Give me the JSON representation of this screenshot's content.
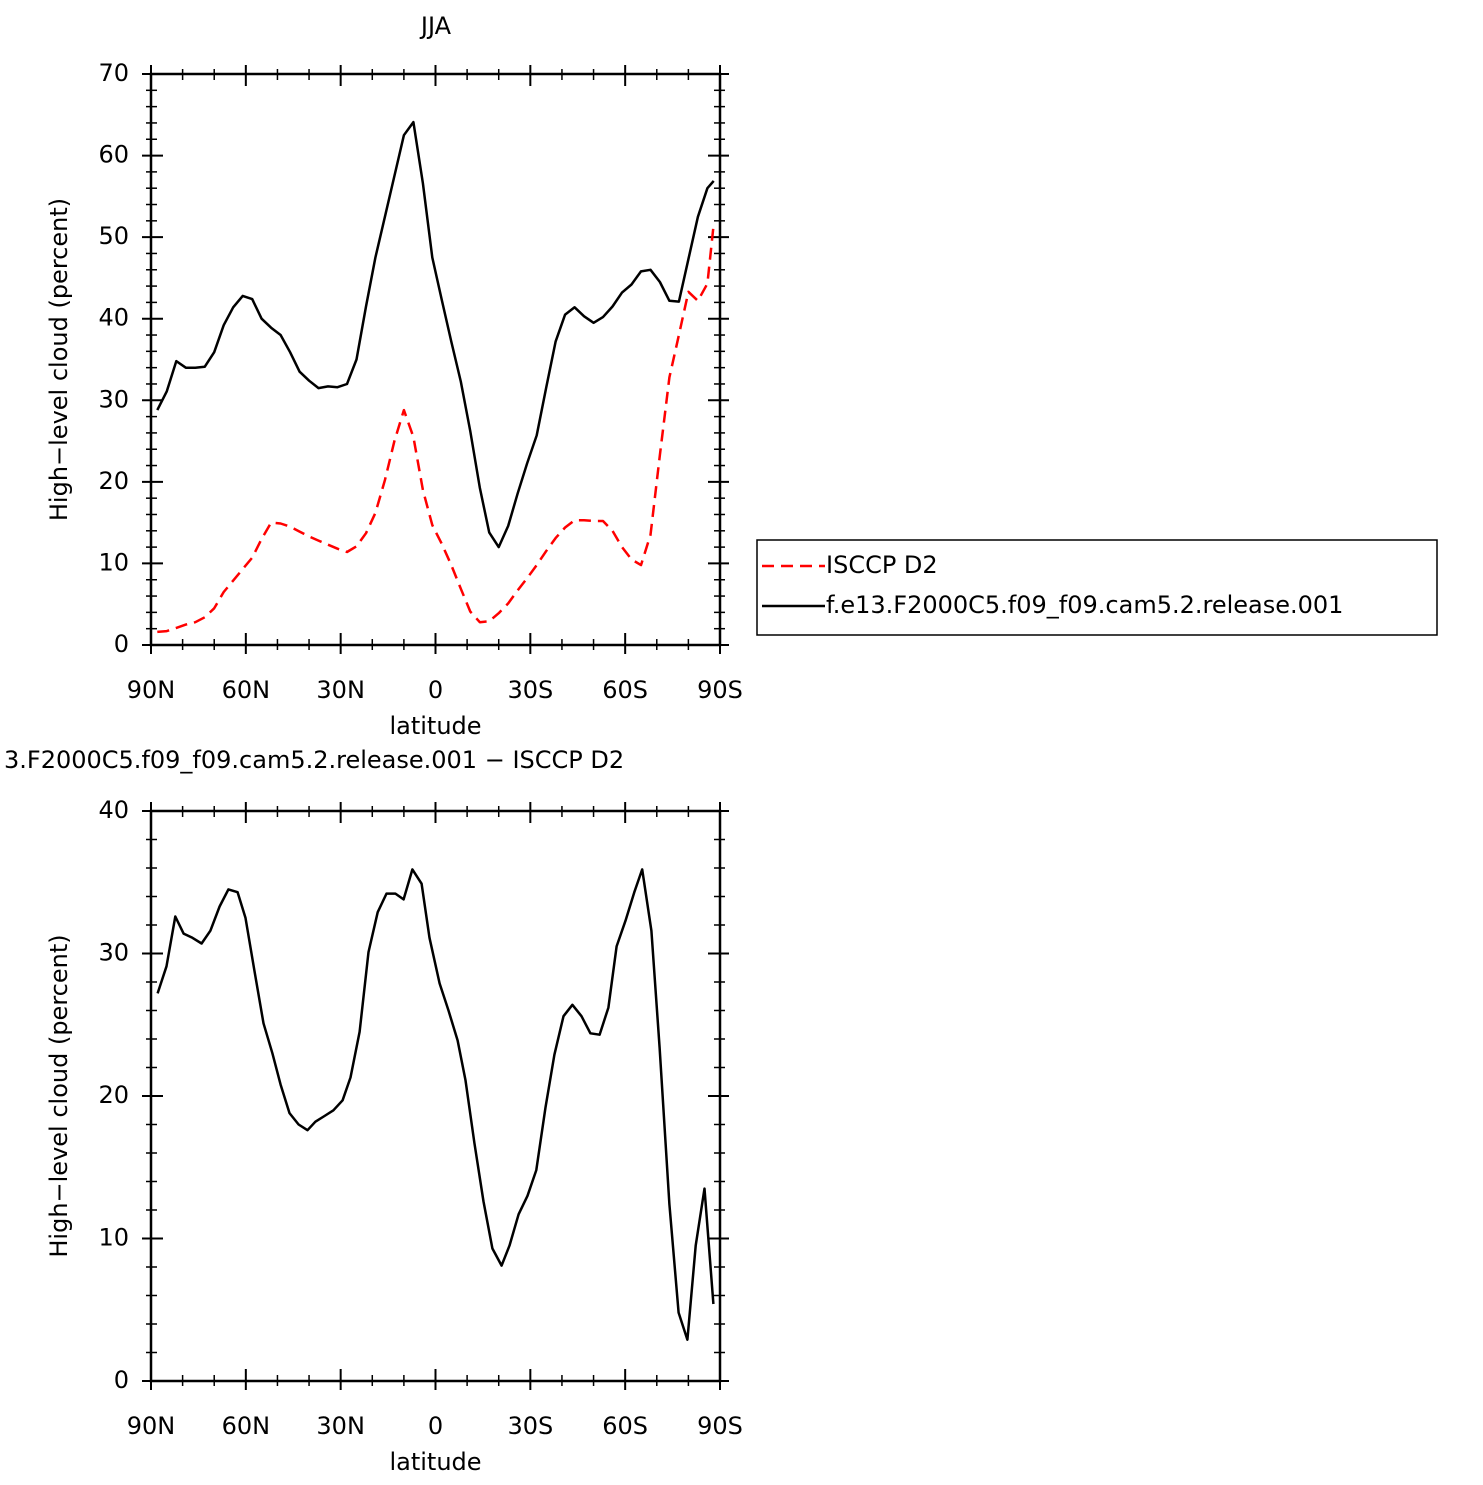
{
  "chart_data": [
    {
      "type": "line",
      "title": "JJA",
      "xlabel": "latitude",
      "ylabel": "High−level cloud (percent)",
      "x": [
        88,
        85,
        82,
        79,
        76,
        73,
        70,
        67,
        64,
        61,
        58,
        55,
        52,
        49,
        46,
        43,
        40,
        37,
        34,
        31,
        28,
        25,
        22,
        19,
        16,
        13,
        10,
        7,
        4,
        1,
        -2,
        -5,
        -8,
        -11,
        -14,
        -17,
        -20,
        -23,
        -26,
        -29,
        -32,
        -35,
        -38,
        -41,
        -44,
        -47,
        -50,
        -53,
        -56,
        -59,
        -62,
        -65,
        -68,
        -71,
        -74,
        -77,
        -80,
        -83,
        -86,
        -88
      ],
      "series": [
        {
          "name": "ISCCP D2",
          "color": "#ff0000",
          "dashed": true,
          "values": [
            1.6,
            1.7,
            2.1,
            2.5,
            2.8,
            3.4,
            4.5,
            6.5,
            7.9,
            9.3,
            10.7,
            13.0,
            15.0,
            14.9,
            14.5,
            13.9,
            13.3,
            12.8,
            12.3,
            11.8,
            11.4,
            12.1,
            13.7,
            16.2,
            20.2,
            25.0,
            28.8,
            25.5,
            19.0,
            14.7,
            12.4,
            9.8,
            6.9,
            4.1,
            2.8,
            2.9,
            3.9,
            5.1,
            6.7,
            8.2,
            9.8,
            11.5,
            13.1,
            14.4,
            15.3,
            15.3,
            15.2,
            15.2,
            14.0,
            12.0,
            10.5,
            9.8,
            13.5,
            23.3,
            32.8,
            38.0,
            43.3,
            42.2,
            44.3,
            51.6
          ]
        },
        {
          "name": "f.e13.F2000C5.f09_f09.cam5.2.release.001",
          "color": "#000000",
          "dashed": false,
          "values": [
            28.8,
            31.1,
            34.8,
            34.0,
            34.0,
            34.1,
            35.9,
            39.2,
            41.4,
            42.8,
            42.4,
            40.0,
            38.9,
            38.0,
            35.9,
            33.5,
            32.4,
            31.5,
            31.7,
            31.6,
            32.0,
            35.0,
            41.5,
            47.5,
            52.5,
            57.5,
            62.5,
            64.1,
            56.6,
            47.5,
            42.3,
            37.2,
            32.3,
            26.2,
            19.3,
            13.8,
            12.0,
            14.6,
            18.6,
            22.3,
            25.7,
            31.5,
            37.2,
            40.5,
            41.4,
            40.3,
            39.5,
            40.2,
            41.5,
            43.2,
            44.2,
            45.8,
            46.0,
            44.5,
            42.2,
            42.1,
            47.3,
            52.5,
            56.0,
            56.9
          ]
        }
      ],
      "xlim": [
        90,
        -90
      ],
      "xticks": [
        {
          "value": 90,
          "label": "90N"
        },
        {
          "value": 60,
          "label": "60N"
        },
        {
          "value": 30,
          "label": "30N"
        },
        0,
        {
          "value": -30,
          "label": "30S"
        },
        {
          "value": -60,
          "label": "60S"
        },
        {
          "value": -90,
          "label": "90S"
        }
      ],
      "ylim": [
        0,
        70
      ],
      "yticks": [
        0,
        10,
        20,
        30,
        40,
        50,
        60,
        70
      ],
      "legend": "right"
    },
    {
      "type": "line",
      "title": "3.F2000C5.f09_f09.cam5.2.release.001 − ISCCP D2",
      "xlabel": "latitude",
      "ylabel": "High−level cloud (percent)",
      "x": [
        87.9,
        85.1,
        82.3,
        79.7,
        76.9,
        74.0,
        71.2,
        68.3,
        65.5,
        62.6,
        60.1,
        57.3,
        54.4,
        51.6,
        49.0,
        46.2,
        43.3,
        40.5,
        38.0,
        35.1,
        32.3,
        29.4,
        26.9,
        24.0,
        21.2,
        18.3,
        15.5,
        12.7,
        10.1,
        7.3,
        4.4,
        1.9,
        -1.3,
        -4.1,
        -7.0,
        -9.5,
        -12.3,
        -15.2,
        -18.0,
        -20.9,
        -23.4,
        -26.3,
        -29.1,
        -31.9,
        -34.8,
        -37.6,
        -40.5,
        -43.3,
        -46.2,
        -49.0,
        -51.9,
        -54.7,
        -57.3,
        -60.1,
        -62.9,
        -65.4,
        -68.3,
        -70.9,
        -74.0,
        -76.9,
        -79.7,
        -82.3,
        -85.1,
        -87.9
      ],
      "values": [
        27.2,
        29.1,
        32.6,
        31.4,
        31.1,
        30.7,
        31.6,
        33.3,
        34.5,
        34.3,
        32.5,
        28.8,
        25.1,
        23.0,
        20.8,
        18.8,
        18.0,
        17.6,
        18.2,
        18.6,
        19.0,
        19.7,
        21.3,
        24.5,
        30.1,
        32.9,
        34.2,
        34.2,
        33.8,
        35.9,
        34.9,
        31.1,
        27.9,
        26.0,
        23.9,
        21.1,
        16.7,
        12.6,
        9.3,
        8.1,
        9.5,
        11.7,
        13.0,
        14.8,
        19.2,
        22.9,
        25.6,
        26.4,
        25.6,
        24.4,
        24.3,
        26.2,
        30.5,
        32.3,
        34.3,
        35.9,
        31.6,
        23.4,
        12.4,
        4.8,
        2.9,
        9.5,
        13.5,
        5.4
      ],
      "color": "#000000",
      "xlim": [
        90,
        -90
      ],
      "xticks": [
        {
          "value": 90,
          "label": "90N"
        },
        {
          "value": 60,
          "label": "60N"
        },
        {
          "value": 30,
          "label": "30N"
        },
        0,
        {
          "value": -30,
          "label": "30S"
        },
        {
          "value": -60,
          "label": "60S"
        },
        {
          "value": -90,
          "label": "90S"
        }
      ],
      "ylim": [
        0,
        40
      ],
      "yticks": [
        0,
        10,
        20,
        30,
        40
      ]
    }
  ]
}
